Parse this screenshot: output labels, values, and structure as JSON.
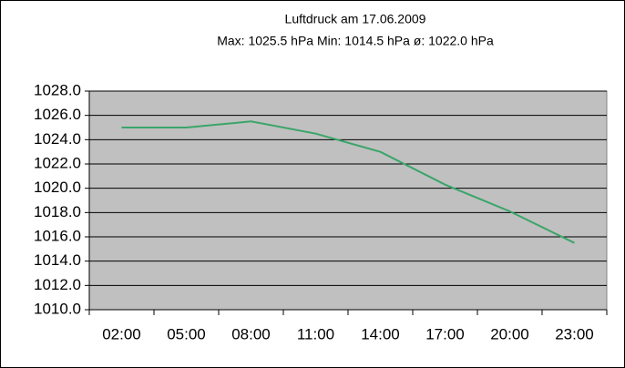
{
  "chart_data": {
    "type": "line",
    "title": "Luftdruck am 17.06.2009",
    "subtitle": "Max: 1025.5 hPa Min: 1014.5 hPa ø: 1022.0 hPa",
    "categories": [
      "02:00",
      "05:00",
      "08:00",
      "11:00",
      "14:00",
      "17:00",
      "20:00",
      "23:00"
    ],
    "series": [
      {
        "color": "#3aa56a",
        "values": [
          1025.0,
          1025.0,
          1025.5,
          1024.5,
          1023.0,
          1020.3,
          1018.1,
          1015.5
        ]
      }
    ],
    "ylim": [
      1010,
      1028
    ],
    "yticks": [
      {
        "value": 1010,
        "label": "1010.0"
      },
      {
        "value": 1012,
        "label": "1012.0"
      },
      {
        "value": 1014,
        "label": "1014.0"
      },
      {
        "value": 1016,
        "label": "1016.0"
      },
      {
        "value": 1018,
        "label": "1018.0"
      },
      {
        "value": 1020,
        "label": "1020.0"
      },
      {
        "value": 1022,
        "label": "1022.0"
      },
      {
        "value": 1024,
        "label": "1024.0"
      },
      {
        "value": 1026,
        "label": "1026.0"
      },
      {
        "value": 1028,
        "label": "1028.0"
      }
    ],
    "grid": true,
    "plot_background": "#c0c0c0"
  }
}
